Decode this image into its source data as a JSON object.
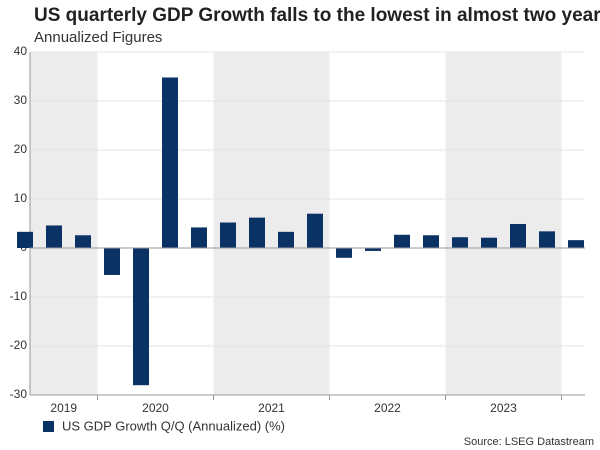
{
  "chart_data": {
    "type": "bar",
    "title": "US quarterly GDP Growth  falls to the lowest in almost two years",
    "subtitle": "Annualized Figures",
    "source": "Source: LSEG Datastream",
    "series_name": "US GDP Growth Q/Q (Annualized) (%)",
    "color": "#0b3265",
    "band_color": "#ececec",
    "groups": [
      {
        "label": "2019",
        "values": [
          3.3,
          4.6,
          2.6
        ]
      },
      {
        "label": "2020",
        "values": [
          -5.5,
          -28.0,
          34.8,
          4.2
        ]
      },
      {
        "label": "2021",
        "values": [
          5.2,
          6.2,
          3.3,
          7.0
        ]
      },
      {
        "label": "2022",
        "values": [
          -2.0,
          -0.6,
          2.7,
          2.6
        ]
      },
      {
        "label": "2023",
        "values": [
          2.2,
          2.1,
          4.9,
          3.4
        ]
      },
      {
        "label": null,
        "values": [
          1.6
        ]
      }
    ],
    "ylim": [
      -30,
      40
    ],
    "yticks": [
      -30,
      -20,
      -10,
      0,
      10,
      20,
      30,
      40
    ],
    "grid": true
  }
}
